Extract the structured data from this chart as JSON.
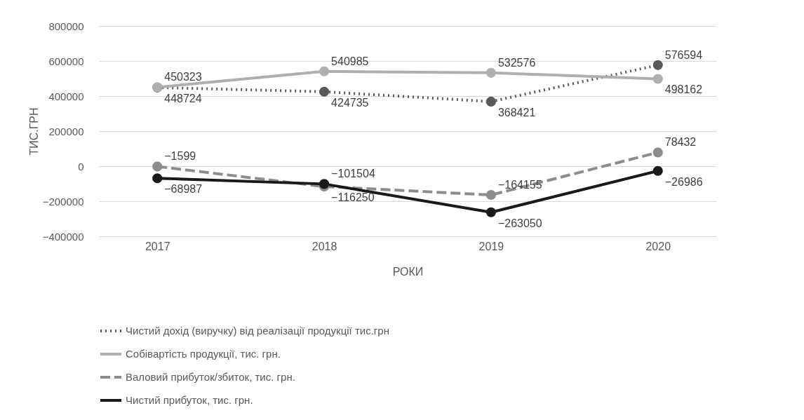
{
  "chart_data": {
    "type": "line",
    "xlabel": "РОКИ",
    "ylabel": "ТИС.ГРН",
    "categories": [
      "2017",
      "2018",
      "2019",
      "2020"
    ],
    "series": [
      {
        "name": "Чистий дохід (виручку) від реалізації продукції тис.грн",
        "color": "#595959",
        "line_style": "dotted",
        "values": [
          448724,
          424735,
          368421,
          576594
        ]
      },
      {
        "name": "Собівартість продукції, тис. грн.",
        "color": "#afafaf",
        "line_style": "solid",
        "values": [
          450323,
          540985,
          532576,
          498162
        ]
      },
      {
        "name": "Валовий прибуток/збиток, тис. грн.",
        "color": "#8c8c8c",
        "line_style": "dashed",
        "values": [
          -1599,
          -116250,
          -164155,
          78432
        ]
      },
      {
        "name": "Чистий прибуток, тис. грн.",
        "color": "#1a1a1a",
        "line_style": "solid",
        "values": [
          -68987,
          -101504,
          -263050,
          -26986
        ]
      }
    ],
    "ylim": [
      -400000,
      800000
    ],
    "yticks": [
      -400000,
      -200000,
      0,
      200000,
      400000,
      600000,
      800000
    ],
    "grid": "y",
    "legend": "bottom",
    "marker": "circle",
    "data_labels": true
  }
}
